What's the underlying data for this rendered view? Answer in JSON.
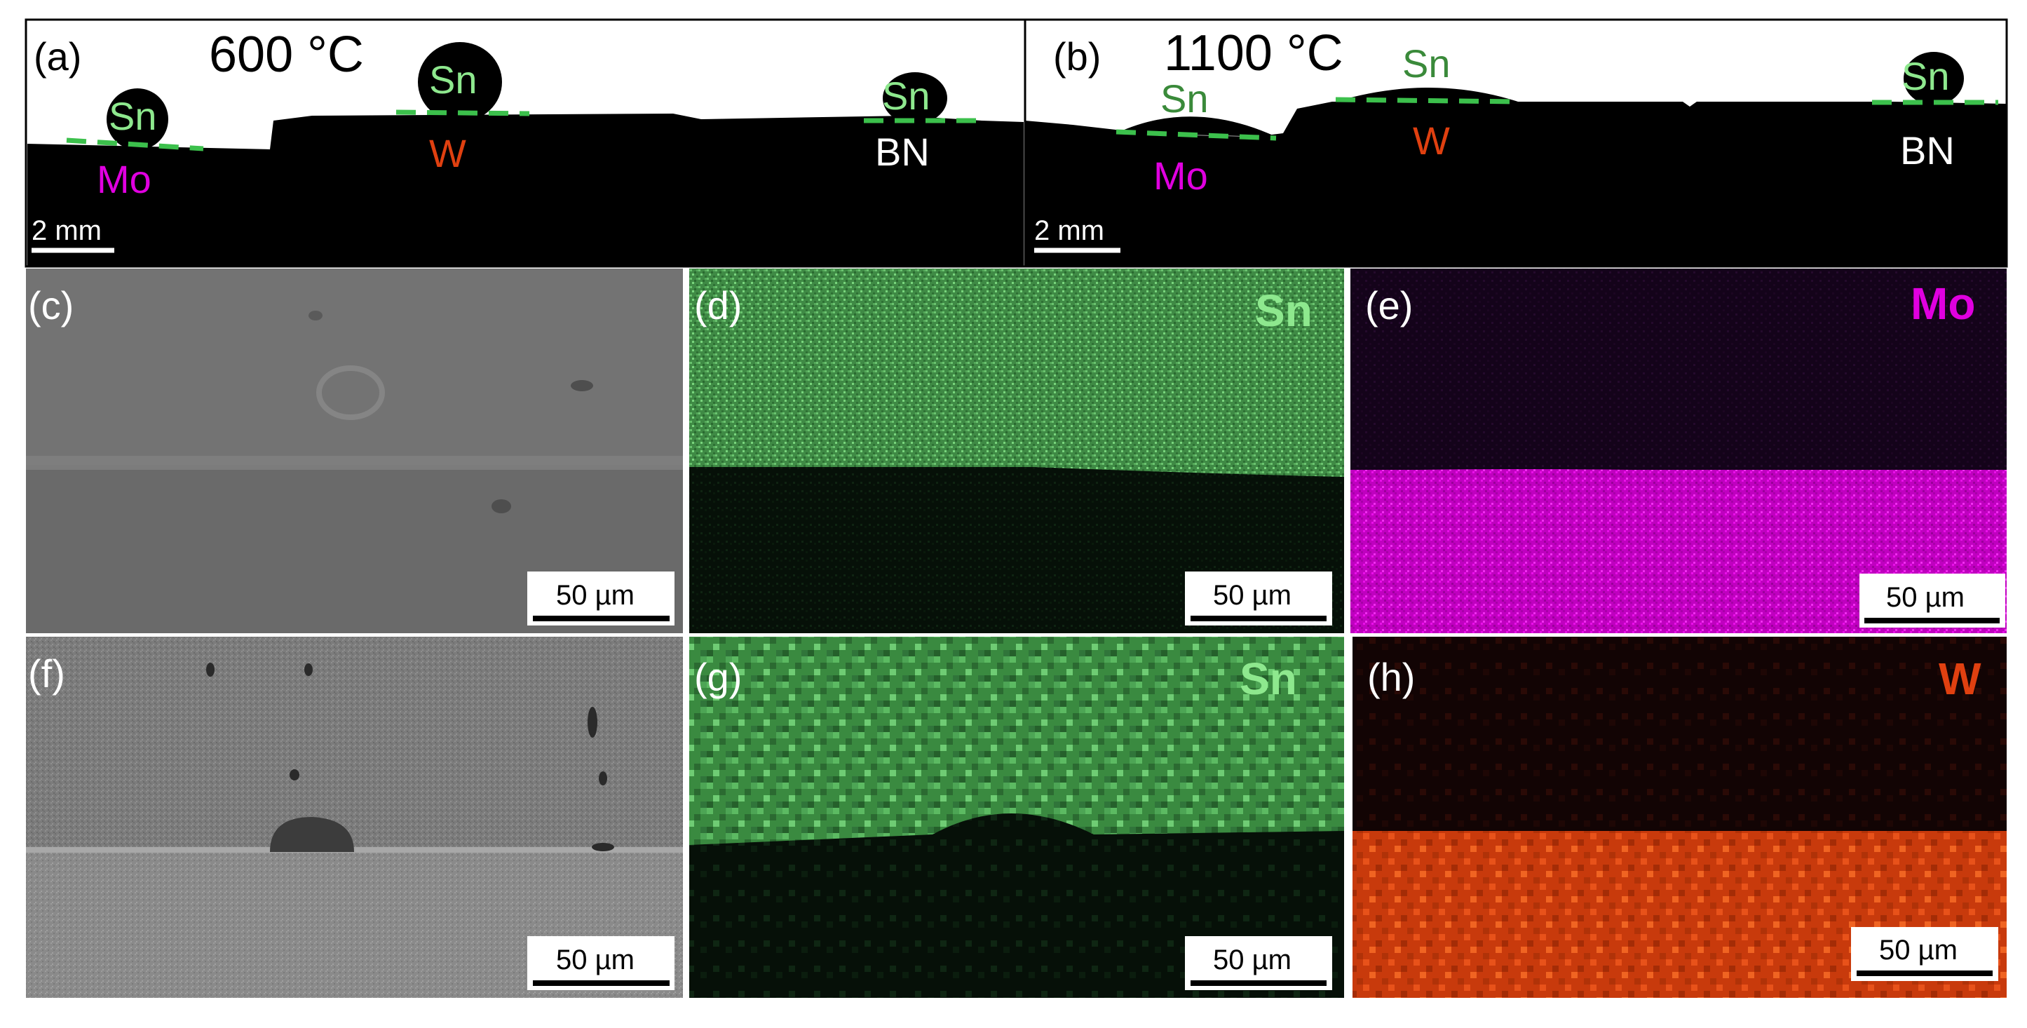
{
  "figure": {
    "panel_a": {
      "label": "(a)",
      "temperature": "600 °C",
      "substrates": [
        "Mo",
        "W",
        "BN"
      ],
      "droplet": "Sn",
      "scale_bar": "2 mm"
    },
    "panel_b": {
      "label": "(b)",
      "temperature": "1100 °C",
      "substrates": [
        "Mo",
        "W",
        "BN"
      ],
      "droplet": "Sn",
      "scale_bar": "2 mm"
    },
    "panel_c": {
      "label": "(c)",
      "scale_bar": "50 µm"
    },
    "panel_d": {
      "label": "(d)",
      "element": "Sn",
      "scale_bar": "50 µm"
    },
    "panel_e": {
      "label": "(e)",
      "element": "Mo",
      "scale_bar": "50 µm"
    },
    "panel_f": {
      "label": "(f)",
      "scale_bar": "50 µm"
    },
    "panel_g": {
      "label": "(g)",
      "element": "Sn",
      "scale_bar": "50 µm"
    },
    "panel_h": {
      "label": "(h)",
      "element": "W",
      "scale_bar": "50 µm"
    }
  },
  "colors": {
    "sn": "#7fe07f",
    "sn_dark_label": "#3a8a3a",
    "mo": "#e000e0",
    "w": "#e04010",
    "interface_dash": "#3cc04c"
  }
}
